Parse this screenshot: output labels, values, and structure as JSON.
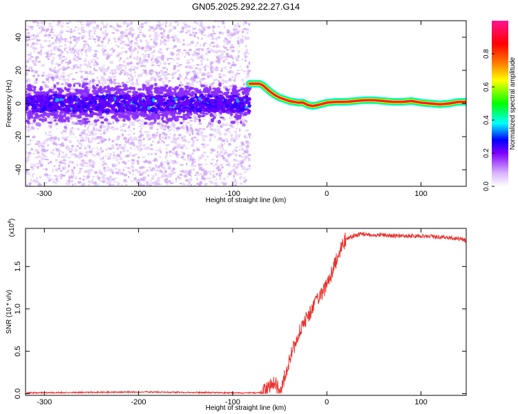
{
  "title": "GN05.2025.292.22.27.G14",
  "chart_data": [
    {
      "type": "heatmap",
      "title": "GN05.2025.292.22.27.G14",
      "xlabel": "Height of straight line (km)",
      "ylabel": "Frequency (Hz)",
      "xlim": [
        -320,
        148
      ],
      "ylim": [
        -50,
        50
      ],
      "xticks": [
        -300,
        -200,
        -100,
        0,
        100
      ],
      "yticks": [
        -40,
        -20,
        0,
        20,
        40
      ],
      "noise_region_x": [
        -320,
        -82
      ],
      "tracked_frequency": {
        "x": [
          -82,
          -78,
          -72,
          -68,
          -64,
          -60,
          -55,
          -50,
          -45,
          -40,
          -35,
          -30,
          -25,
          -20,
          -15,
          -10,
          0,
          10,
          20,
          30,
          40,
          50,
          60,
          70,
          80,
          90,
          100,
          110,
          120,
          130,
          140,
          148
        ],
        "hz": [
          12,
          12,
          12,
          11,
          9,
          7,
          5,
          3.5,
          2.5,
          1.5,
          1,
          0.5,
          0.5,
          -1,
          -1.5,
          -1,
          0.5,
          1,
          1,
          1.5,
          2,
          2,
          1.5,
          1,
          1,
          1.5,
          0.5,
          0,
          -0.5,
          0,
          1,
          1
        ]
      },
      "colorbar": {
        "label": "Normalized spectral amplitude",
        "ticks": [
          "0.0",
          "0.2",
          "0.4",
          "0.6",
          "0.8"
        ],
        "range": [
          0,
          1
        ],
        "colors": [
          "#ffffff",
          "#d9b3ff",
          "#7f00ff",
          "#0000ff",
          "#00ffff",
          "#00ff00",
          "#ffff00",
          "#ff7f00",
          "#ff0000",
          "#ff1493"
        ]
      }
    },
    {
      "type": "line",
      "xlabel": "Height of straight line (km)",
      "ylabel": "SNR (10 * v/v)",
      "multiplier": "(x10",
      "multiplier_exp": "4",
      "xlim": [
        -320,
        148
      ],
      "ylim": [
        -0.02,
        1.95
      ],
      "xticks": [
        -300,
        -200,
        -100,
        0,
        100
      ],
      "yticks": [
        "0.0",
        "0.5",
        "1.0",
        "1.5"
      ],
      "series": [
        {
          "color": "#e8322e",
          "x": [
            -320,
            -200,
            -100,
            -70,
            -65,
            -60,
            -55,
            -50,
            -45,
            -40,
            -35,
            -30,
            -25,
            -20,
            -15,
            -10,
            -5,
            0,
            5,
            10,
            15,
            20,
            25,
            30,
            35,
            40,
            60,
            80,
            100,
            120,
            140,
            148
          ],
          "values": [
            0.01,
            0.02,
            0.01,
            0.01,
            0.05,
            0.1,
            0.13,
            0.03,
            0.2,
            0.38,
            0.55,
            0.7,
            0.82,
            0.93,
            1.0,
            1.1,
            1.18,
            1.28,
            1.42,
            1.58,
            1.72,
            1.82,
            1.85,
            1.87,
            1.88,
            1.88,
            1.87,
            1.86,
            1.86,
            1.85,
            1.83,
            1.8
          ]
        }
      ]
    }
  ]
}
